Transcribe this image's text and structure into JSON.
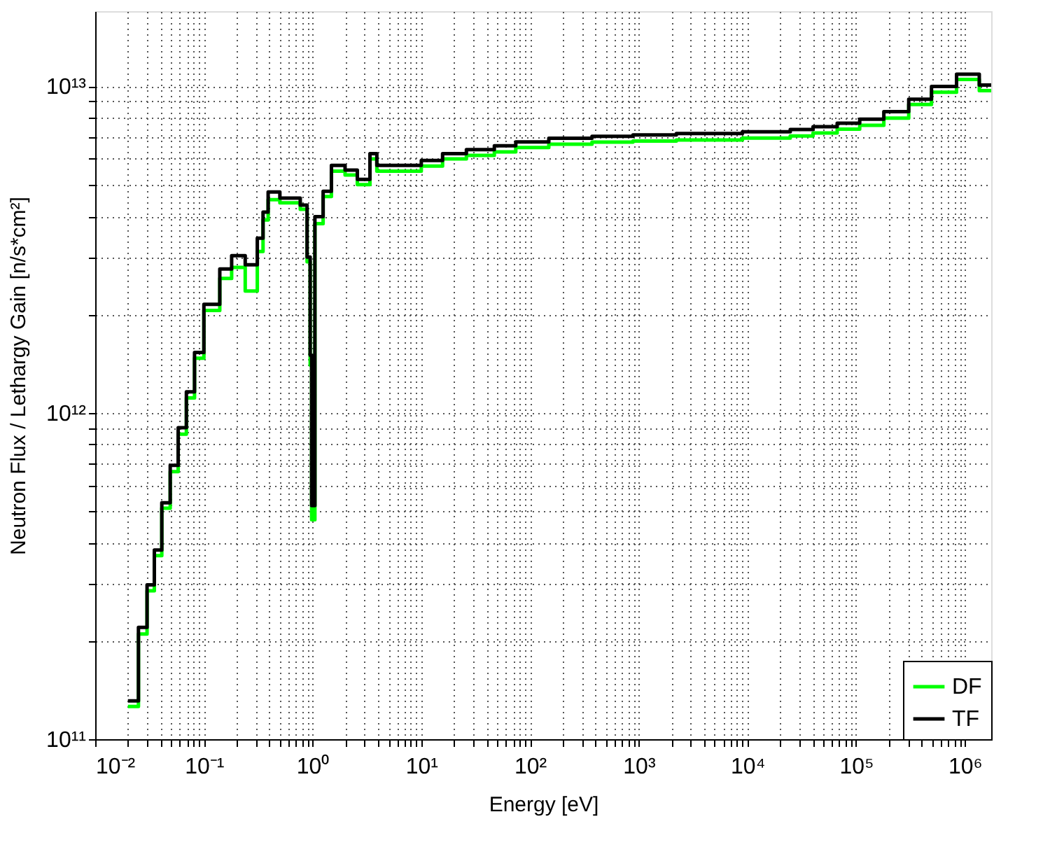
{
  "chart_data": {
    "type": "step",
    "xlabel": "Energy [eV]",
    "ylabel": "Neutron Flux / Lethargy Gain [n/s*cm²]",
    "x": [
      0.02,
      0.025,
      0.03,
      0.035,
      0.041,
      0.049,
      0.058,
      0.069,
      0.082,
      0.1,
      0.14,
      0.18,
      0.24,
      0.31,
      0.35,
      0.39,
      0.5,
      0.77,
      0.89,
      0.95,
      0.98,
      1.05,
      1.25,
      1.49,
      1.99,
      2.58,
      3.37,
      3.9,
      10,
      15.7,
      26,
      47,
      74,
      149,
      372,
      886,
      2220,
      9000,
      24800,
      40200,
      67000,
      108000,
      180000,
      305000,
      494000,
      840000,
      1360000,
      1750000
    ],
    "series": [
      {
        "name": "DF",
        "color": "#00ff00",
        "values": [
          126000000000.0,
          210000000000.0,
          285000000000.0,
          365000000000.0,
          510000000000.0,
          660000000000.0,
          860000000000.0,
          1110000000000.0,
          1470000000000.0,
          2060000000000.0,
          2580000000000.0,
          2790000000000.0,
          2360000000000.0,
          3120000000000.0,
          3900000000000.0,
          4500000000000.0,
          4400000000000.0,
          4200000000000.0,
          2900000000000.0,
          1400000000000.0,
          470000000000.0,
          3800000000000.0,
          4600000000000.0,
          5500000000000.0,
          5350000000000.0,
          5000000000000.0,
          6000000000000.0,
          5500000000000.0,
          5700000000000.0,
          6000000000000.0,
          6150000000000.0,
          6300000000000.0,
          6500000000000.0,
          6650000000000.0,
          6750000000000.0,
          6800000000000.0,
          6850000000000.0,
          6950000000000.0,
          7050000000000.0,
          7200000000000.0,
          7400000000000.0,
          7600000000000.0,
          8000000000000.0,
          8800000000000.0,
          9600000000000.0,
          10500000000000.0,
          9700000000000.0,
          9700000000000.0
        ]
      },
      {
        "name": "TF",
        "color": "#000000",
        "values": [
          131000000000.0,
          220000000000.0,
          297000000000.0,
          380000000000.0,
          530000000000.0,
          690000000000.0,
          900000000000.0,
          1160000000000.0,
          1530000000000.0,
          2150000000000.0,
          2760000000000.0,
          3030000000000.0,
          2840000000000.0,
          3430000000000.0,
          4120000000000.0,
          4750000000000.0,
          4550000000000.0,
          4330000000000.0,
          3000000000000.0,
          1500000000000.0,
          520000000000.0,
          3990000000000.0,
          4770000000000.0,
          5730000000000.0,
          5540000000000.0,
          5190000000000.0,
          6220000000000.0,
          5730000000000.0,
          5930000000000.0,
          6220000000000.0,
          6400000000000.0,
          6580000000000.0,
          6760000000000.0,
          6940000000000.0,
          7030000000000.0,
          7100000000000.0,
          7170000000000.0,
          7260000000000.0,
          7380000000000.0,
          7530000000000.0,
          7710000000000.0,
          7940000000000.0,
          8370000000000.0,
          9140000000000.0,
          10000000000000.0,
          10900000000000.0,
          10100000000000.0,
          10100000000000.0
        ]
      }
    ],
    "xlim": [
      0.01,
      1750000
    ],
    "ylim": [
      100000000000.0,
      17000000000000.0
    ],
    "log": "xy",
    "grid": true,
    "legend": "bottom right",
    "line_style": "solid",
    "marker": "none",
    "xticks": [
      {
        "value": 0.01,
        "label": "10⁻²"
      },
      {
        "value": 0.02,
        "label": null
      },
      {
        "value": 0.03,
        "label": null
      },
      {
        "value": 0.04,
        "label": null
      },
      {
        "value": 0.05,
        "label": null
      },
      {
        "value": 0.06,
        "label": null
      },
      {
        "value": 0.07,
        "label": null
      },
      {
        "value": 0.08,
        "label": null
      },
      {
        "value": 0.09,
        "label": null
      },
      {
        "value": 0.1,
        "label": "10⁻¹"
      },
      {
        "value": 0.2,
        "label": null
      },
      {
        "value": 0.3,
        "label": null
      },
      {
        "value": 0.4,
        "label": null
      },
      {
        "value": 0.5,
        "label": null
      },
      {
        "value": 0.6,
        "label": null
      },
      {
        "value": 0.7,
        "label": null
      },
      {
        "value": 0.8,
        "label": null
      },
      {
        "value": 0.9,
        "label": null
      },
      {
        "value": 1,
        "label": "10⁰"
      },
      {
        "value": 2,
        "label": null
      },
      {
        "value": 3,
        "label": null
      },
      {
        "value": 4,
        "label": null
      },
      {
        "value": 5,
        "label": null
      },
      {
        "value": 6,
        "label": null
      },
      {
        "value": 7,
        "label": null
      },
      {
        "value": 8,
        "label": null
      },
      {
        "value": 9,
        "label": null
      },
      {
        "value": 10,
        "label": "10¹"
      },
      {
        "value": 20,
        "label": null
      },
      {
        "value": 30,
        "label": null
      },
      {
        "value": 40,
        "label": null
      },
      {
        "value": 50,
        "label": null
      },
      {
        "value": 60,
        "label": null
      },
      {
        "value": 70,
        "label": null
      },
      {
        "value": 80,
        "label": null
      },
      {
        "value": 90,
        "label": null
      },
      {
        "value": 100,
        "label": "10²"
      },
      {
        "value": 200,
        "label": null
      },
      {
        "value": 300,
        "label": null
      },
      {
        "value": 400,
        "label": null
      },
      {
        "value": 500,
        "label": null
      },
      {
        "value": 600,
        "label": null
      },
      {
        "value": 700,
        "label": null
      },
      {
        "value": 800,
        "label": null
      },
      {
        "value": 900,
        "label": null
      },
      {
        "value": 1000,
        "label": "10³"
      },
      {
        "value": 2000,
        "label": null
      },
      {
        "value": 3000,
        "label": null
      },
      {
        "value": 4000,
        "label": null
      },
      {
        "value": 5000,
        "label": null
      },
      {
        "value": 6000,
        "label": null
      },
      {
        "value": 7000,
        "label": null
      },
      {
        "value": 8000,
        "label": null
      },
      {
        "value": 9000,
        "label": null
      },
      {
        "value": 10000,
        "label": "10⁴"
      },
      {
        "value": 20000,
        "label": null
      },
      {
        "value": 30000,
        "label": null
      },
      {
        "value": 40000,
        "label": null
      },
      {
        "value": 50000,
        "label": null
      },
      {
        "value": 60000,
        "label": null
      },
      {
        "value": 70000,
        "label": null
      },
      {
        "value": 80000,
        "label": null
      },
      {
        "value": 90000,
        "label": null
      },
      {
        "value": 100000,
        "label": "10⁵"
      },
      {
        "value": 200000,
        "label": null
      },
      {
        "value": 300000,
        "label": null
      },
      {
        "value": 400000,
        "label": null
      },
      {
        "value": 500000,
        "label": null
      },
      {
        "value": 600000,
        "label": null
      },
      {
        "value": 700000,
        "label": null
      },
      {
        "value": 800000,
        "label": null
      },
      {
        "value": 900000,
        "label": null
      },
      {
        "value": 1000000,
        "label": "10⁶"
      }
    ],
    "yticks": [
      {
        "value": 100000000000.0,
        "label": "10¹¹"
      },
      {
        "value": 200000000000.0,
        "label": null
      },
      {
        "value": 300000000000.0,
        "label": null
      },
      {
        "value": 400000000000.0,
        "label": null
      },
      {
        "value": 500000000000.0,
        "label": null
      },
      {
        "value": 600000000000.0,
        "label": null
      },
      {
        "value": 700000000000.0,
        "label": null
      },
      {
        "value": 800000000000.0,
        "label": null
      },
      {
        "value": 900000000000.0,
        "label": null
      },
      {
        "value": 1000000000000.0,
        "label": "10¹²"
      },
      {
        "value": 2000000000000.0,
        "label": null
      },
      {
        "value": 3000000000000.0,
        "label": null
      },
      {
        "value": 4000000000000.0,
        "label": null
      },
      {
        "value": 5000000000000.0,
        "label": null
      },
      {
        "value": 6000000000000.0,
        "label": null
      },
      {
        "value": 7000000000000.0,
        "label": null
      },
      {
        "value": 8000000000000.0,
        "label": null
      },
      {
        "value": 9000000000000.0,
        "label": null
      },
      {
        "value": 10000000000000.0,
        "label": "10¹³"
      }
    ]
  }
}
